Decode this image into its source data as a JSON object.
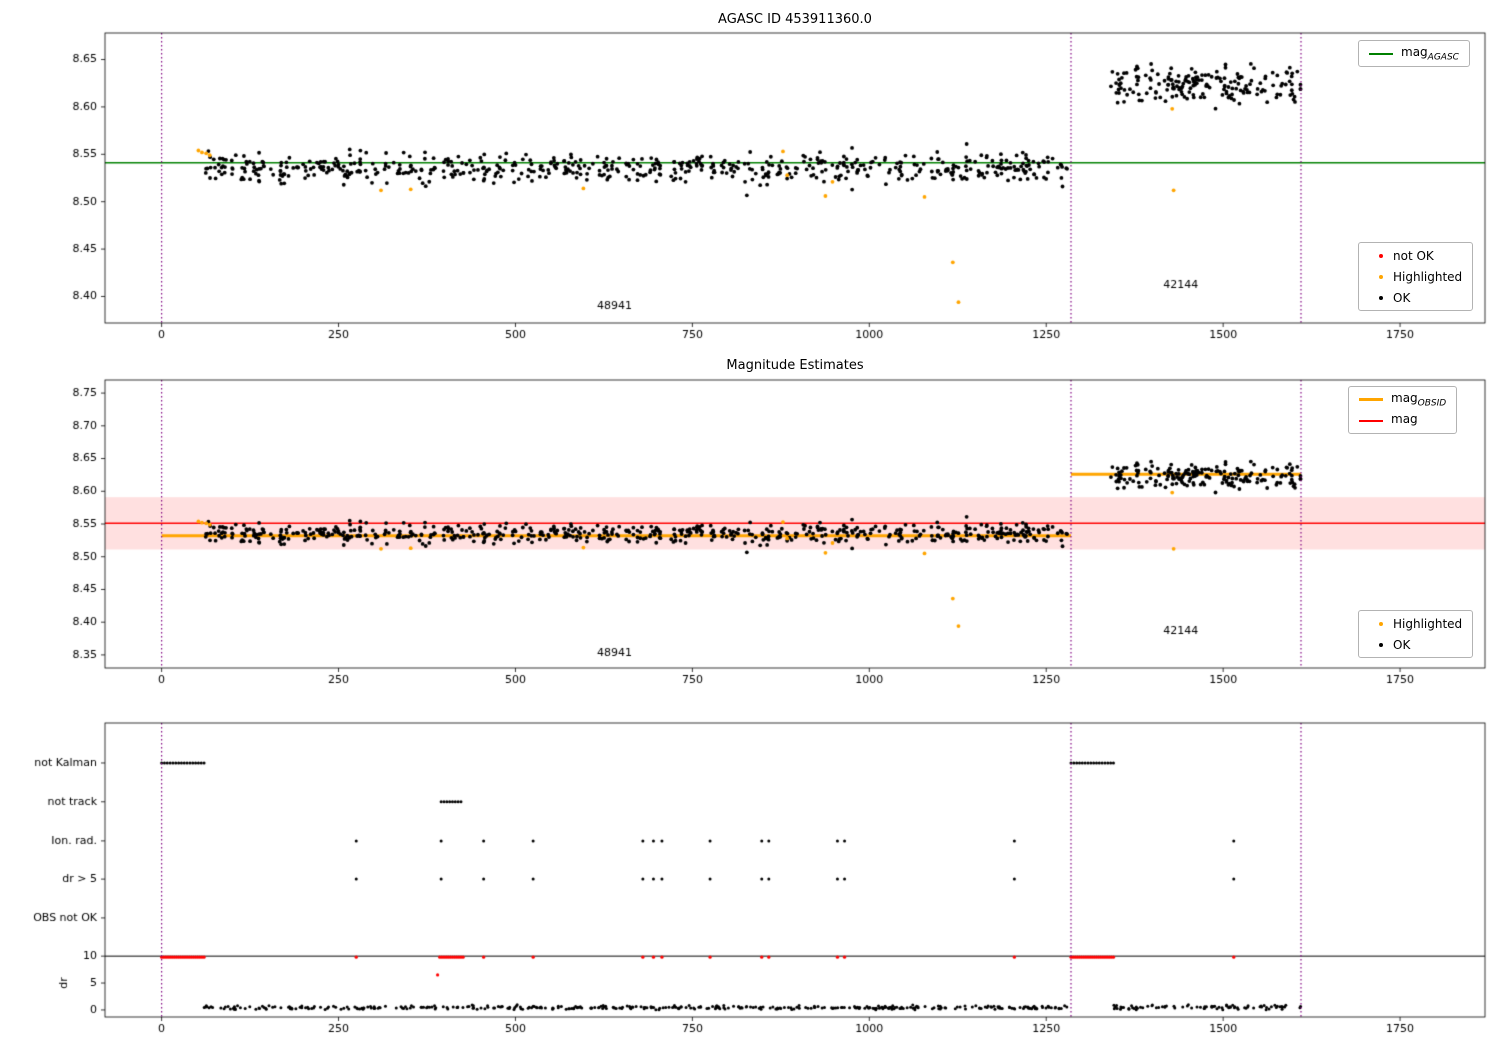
{
  "chart_data": [
    {
      "id": "agasc-mags",
      "type": "scatter",
      "title": "AGASC ID 453911360.0",
      "xlim": [
        -80,
        1870
      ],
      "ylim": [
        8.372,
        8.678
      ],
      "xticks": [
        0,
        250,
        500,
        750,
        1000,
        1250,
        1500,
        1750
      ],
      "yticks": [
        8.4,
        8.45,
        8.5,
        8.55,
        8.6,
        8.65
      ],
      "grid": false,
      "hlines": [
        {
          "y": 8.541,
          "color": "#008000",
          "width": 1.5
        }
      ],
      "vlines": {
        "xs": [
          0,
          1285,
          1610
        ],
        "color": "#800080"
      },
      "legend_lines": [
        {
          "label": {
            "text": "mag",
            "sub": "AGASC"
          },
          "color": "#008000",
          "width": 2
        }
      ],
      "legend_markers": [
        {
          "label": "not OK",
          "color": "#ff0000"
        },
        {
          "label": "Highlighted",
          "color": "#ffa500"
        },
        {
          "label": "OK",
          "color": "#000000"
        }
      ],
      "annotations": [
        {
          "text": "48941",
          "x": 640,
          "y": 8.39
        },
        {
          "text": "42144",
          "x": 1440,
          "y": 8.412
        }
      ],
      "series": {
        "ok": {
          "color": "#000000",
          "clusters": [
            {
              "x0": 60,
              "x1": 1280,
              "mean": 8.535,
              "sd": 0.0075,
              "n": 620,
              "seed": 11
            },
            {
              "x0": 1341,
              "x1": 1610,
              "mean": 8.624,
              "sd": 0.009,
              "n": 190,
              "seed": 12
            }
          ]
        },
        "highlighted": {
          "color": "#ffa500",
          "points": [
            [
              52,
              8.554
            ],
            [
              57,
              8.552
            ],
            [
              63,
              8.551
            ],
            [
              68,
              8.549
            ],
            [
              310,
              8.512
            ],
            [
              352,
              8.513
            ],
            [
              596,
              8.514
            ],
            [
              878,
              8.553
            ],
            [
              884,
              8.528
            ],
            [
              938,
              8.506
            ],
            [
              948,
              8.521
            ],
            [
              1078,
              8.505
            ],
            [
              1118,
              8.436
            ],
            [
              1126,
              8.394
            ],
            [
              1428,
              8.598
            ],
            [
              1430,
              8.512
            ]
          ]
        },
        "not_ok": {
          "color": "#ff0000",
          "points": []
        }
      }
    },
    {
      "id": "magnitude-estimates",
      "type": "scatter",
      "title": "Magnitude Estimates",
      "xlim": [
        -80,
        1870
      ],
      "ylim": [
        8.33,
        8.77
      ],
      "xticks": [
        0,
        250,
        500,
        750,
        1000,
        1250,
        1500,
        1750
      ],
      "yticks": [
        8.35,
        8.4,
        8.45,
        8.5,
        8.55,
        8.6,
        8.65,
        8.7,
        8.75
      ],
      "grid": false,
      "band": {
        "y0": 8.511,
        "y1": 8.591,
        "color": "#ff0000",
        "alpha": 0.12
      },
      "hlines": [
        {
          "y": 8.551,
          "color": "#ff0000",
          "width": 1.5
        }
      ],
      "segments": [
        {
          "x0": 0,
          "x1": 1285,
          "y": 8.532,
          "color": "#ffa500",
          "width": 3
        },
        {
          "x0": 1285,
          "x1": 1610,
          "y": 8.626,
          "color": "#ffa500",
          "width": 3
        }
      ],
      "vlines": {
        "xs": [
          0,
          1285,
          1610
        ],
        "color": "#800080"
      },
      "legend_lines": [
        {
          "label": {
            "text": "mag",
            "sub": "OBSID"
          },
          "color": "#ffa500",
          "width": 3
        },
        {
          "label": {
            "text": "mag",
            "sub": ""
          },
          "color": "#ff0000",
          "width": 2
        }
      ],
      "legend_markers": [
        {
          "label": "Highlighted",
          "color": "#ffa500"
        },
        {
          "label": "OK",
          "color": "#000000"
        }
      ],
      "annotations": [
        {
          "text": "48941",
          "x": 640,
          "y": 8.352
        },
        {
          "text": "42144",
          "x": 1440,
          "y": 8.386
        }
      ],
      "series": {
        "ok": {
          "color": "#000000",
          "clusters": [
            {
              "x0": 60,
              "x1": 1280,
              "mean": 8.535,
              "sd": 0.0075,
              "n": 620,
              "seed": 11
            },
            {
              "x0": 1341,
              "x1": 1610,
              "mean": 8.624,
              "sd": 0.009,
              "n": 190,
              "seed": 12
            }
          ]
        },
        "highlighted": {
          "color": "#ffa500",
          "points": [
            [
              52,
              8.554
            ],
            [
              57,
              8.552
            ],
            [
              63,
              8.551
            ],
            [
              68,
              8.549
            ],
            [
              310,
              8.512
            ],
            [
              352,
              8.513
            ],
            [
              596,
              8.514
            ],
            [
              878,
              8.553
            ],
            [
              884,
              8.528
            ],
            [
              938,
              8.506
            ],
            [
              948,
              8.521
            ],
            [
              1078,
              8.505
            ],
            [
              1118,
              8.436
            ],
            [
              1126,
              8.394
            ],
            [
              1428,
              8.598
            ],
            [
              1430,
              8.512
            ]
          ]
        },
        "not_ok": {
          "color": "#ff0000",
          "points": []
        }
      }
    },
    {
      "id": "flags-dr",
      "type": "flags",
      "title": "",
      "xlim": [
        -80,
        1870
      ],
      "xticks": [
        0,
        250,
        500,
        750,
        1000,
        1250,
        1500,
        1750
      ],
      "categories": [
        "not Kalman",
        "not track",
        "Ion. rad.",
        "dr > 5",
        "OBS not OK"
      ],
      "dr_ticks": [
        10,
        5,
        0
      ],
      "ylabel": "dr",
      "hline_dr": 10,
      "vlines": {
        "xs": [
          0,
          1285,
          1610
        ],
        "color": "#800080"
      },
      "flag_color": "#000000",
      "flag_runs": {
        "not Kalman": [
          {
            "x0": 0,
            "x1": 60,
            "step": 4
          },
          {
            "x0": 1285,
            "x1": 1345,
            "step": 4
          }
        ],
        "not track": [
          {
            "x0": 395,
            "x1": 425,
            "step": 4
          }
        ],
        "Ion. rad.": [],
        "dr > 5": [],
        "OBS not OK": []
      },
      "flag_points": {
        "not Kalman": [],
        "not track": [],
        "Ion. rad.": [
          275,
          395,
          455,
          525,
          680,
          695,
          707,
          775,
          848,
          858,
          955,
          965,
          1205,
          1515
        ],
        "dr > 5": [
          275,
          395,
          455,
          525,
          680,
          695,
          707,
          775,
          848,
          858,
          955,
          965,
          1205,
          1515
        ],
        "OBS not OK": []
      },
      "dr_red": {
        "color": "#ff0000",
        "clip_y": 9.8,
        "runs": [
          {
            "x0": 0,
            "x1": 60,
            "step": 3
          },
          {
            "x0": 393,
            "x1": 427,
            "step": 3
          },
          {
            "x0": 1285,
            "x1": 1345,
            "step": 3
          }
        ],
        "points": [
          275,
          455,
          525,
          680,
          695,
          707,
          775,
          848,
          858,
          955,
          965,
          1205,
          1515
        ],
        "extra": [
          [
            390,
            6.5
          ]
        ]
      },
      "dr_black": {
        "color": "#000000",
        "clusters": [
          {
            "x0": 60,
            "x1": 1280,
            "mean": 0.45,
            "sd": 0.18,
            "n": 400,
            "seed": 21
          },
          {
            "x0": 1345,
            "x1": 1610,
            "mean": 0.55,
            "sd": 0.2,
            "n": 85,
            "seed": 22
          }
        ]
      }
    }
  ]
}
